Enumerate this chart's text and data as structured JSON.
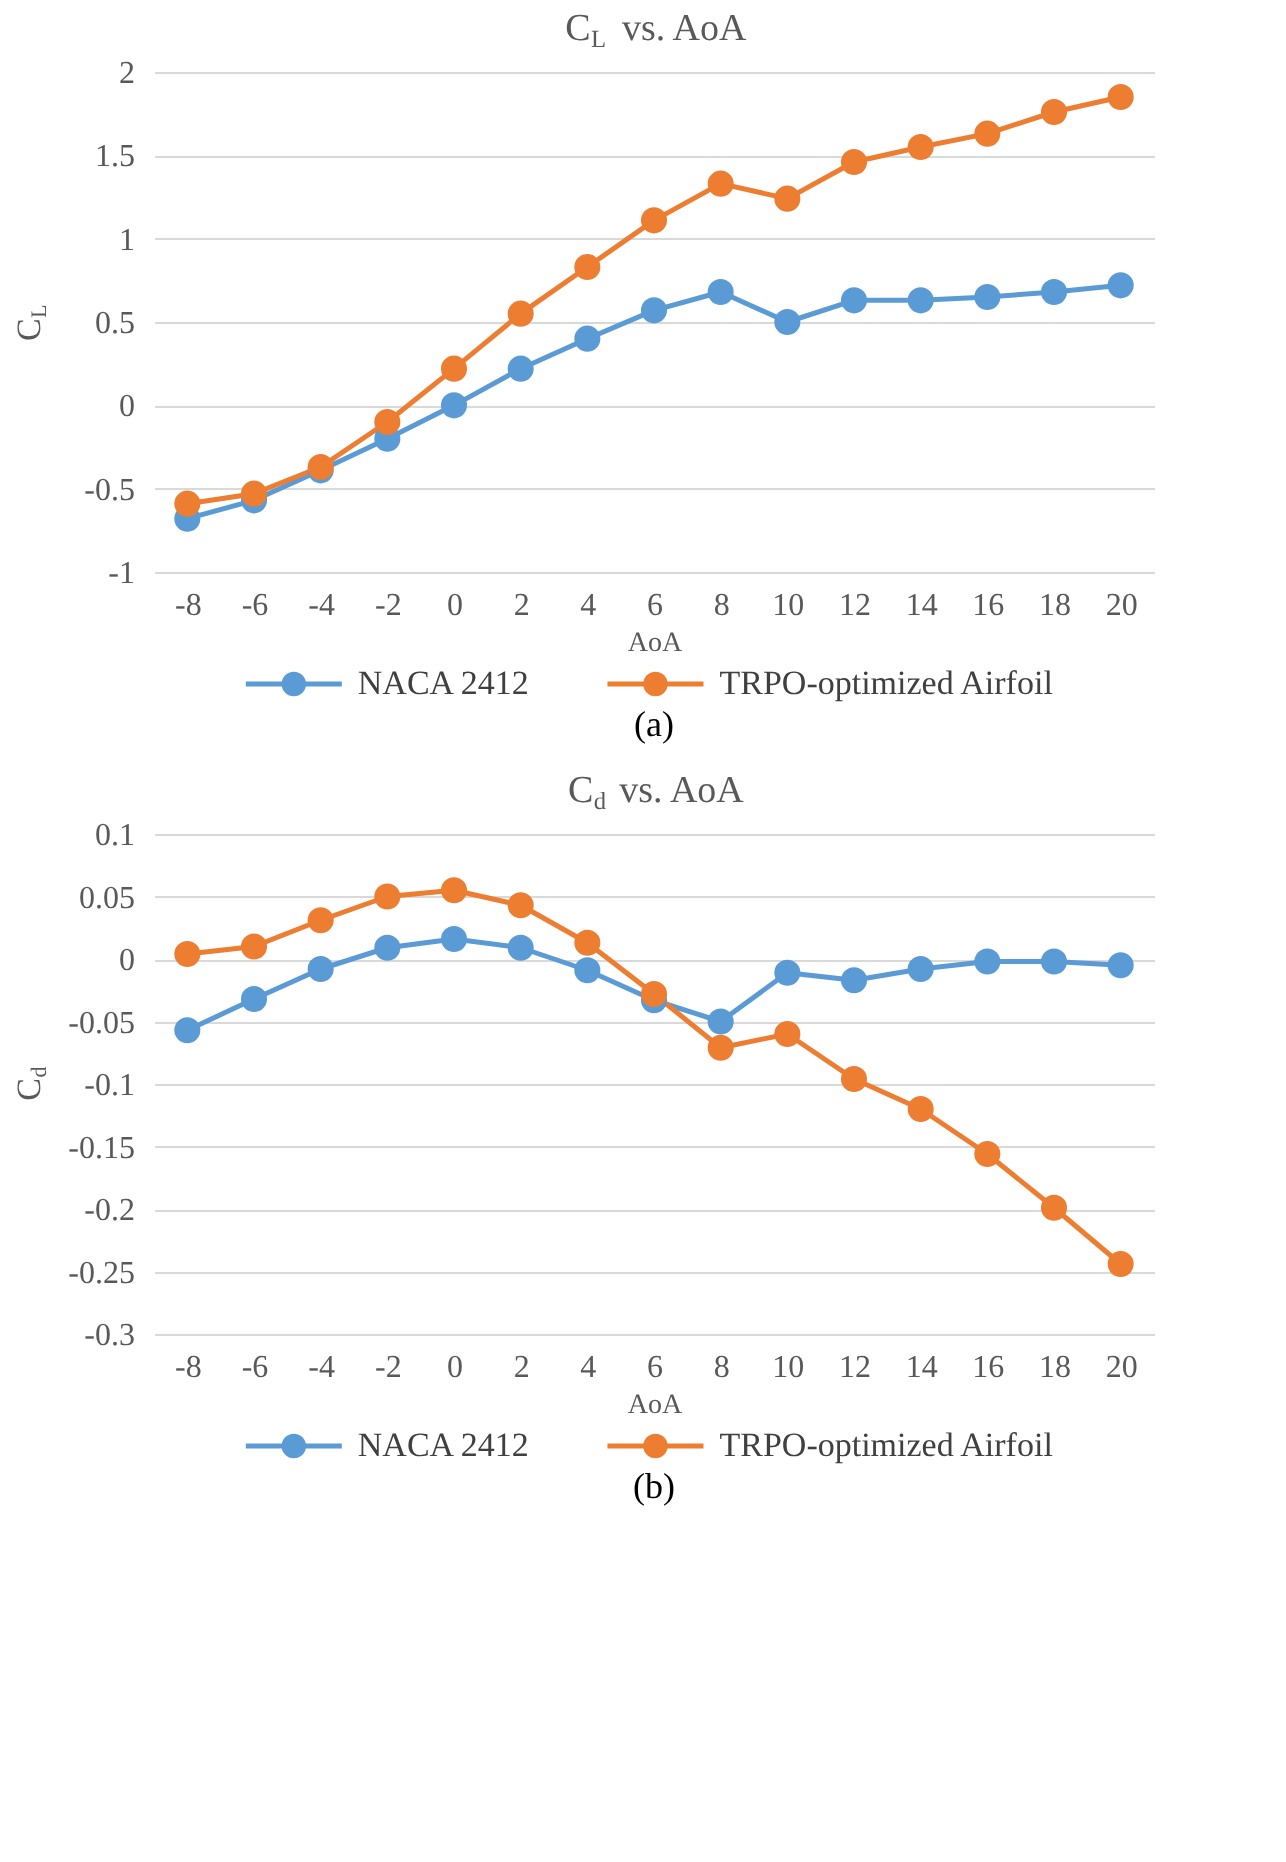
{
  "chart_data": [
    {
      "type": "line",
      "title": "C$_{L}$ vs. AoA",
      "xlabel": "AoA",
      "ylabel": "C$_{L}$",
      "categories": [
        "-8",
        "-6",
        "-4",
        "-2",
        "0",
        "2",
        "4",
        "6",
        "8",
        "10",
        "12",
        "14",
        "16",
        "18",
        "20"
      ],
      "series": [
        {
          "name": "NACA 2412",
          "color": "#5b9bd5",
          "values": [
            -0.68,
            -0.57,
            -0.39,
            -0.2,
            0.0,
            0.22,
            0.4,
            0.57,
            0.68,
            0.5,
            0.63,
            0.63,
            0.65,
            0.68,
            0.72
          ]
        },
        {
          "name": "TRPO-optimized Airfoil",
          "color": "#ed7d31",
          "values": [
            -0.59,
            -0.53,
            -0.37,
            -0.1,
            0.22,
            0.55,
            0.83,
            1.11,
            1.33,
            1.24,
            1.46,
            1.55,
            1.63,
            1.76,
            1.85
          ]
        }
      ],
      "ylim": [
        -1,
        2
      ],
      "yticks": [
        -1,
        -0.5,
        0,
        0.5,
        1,
        1.5,
        2
      ],
      "grid": "y",
      "legend": "bottom",
      "marker": "circle",
      "line_style": "solid",
      "annotations": [
        "(a)"
      ]
    },
    {
      "type": "line",
      "title": "C$_{d}$ vs. AoA",
      "xlabel": "AoA",
      "ylabel": "C$_{d}$",
      "categories": [
        "-8",
        "-6",
        "-4",
        "-2",
        "0",
        "2",
        "4",
        "6",
        "8",
        "10",
        "12",
        "14",
        "16",
        "18",
        "20"
      ],
      "series": [
        {
          "name": "NACA 2412",
          "color": "#5b9bd5",
          "values": [
            -0.057,
            -0.032,
            -0.008,
            0.009,
            0.016,
            0.009,
            -0.009,
            -0.033,
            -0.05,
            -0.011,
            -0.017,
            -0.008,
            -0.002,
            -0.002,
            -0.005
          ]
        },
        {
          "name": "TRPO-optimized Airfoil",
          "color": "#ed7d31",
          "values": [
            0.004,
            0.01,
            0.031,
            0.05,
            0.055,
            0.043,
            0.013,
            -0.028,
            -0.071,
            -0.06,
            -0.096,
            -0.12,
            -0.156,
            -0.199,
            -0.244
          ]
        }
      ],
      "ylim": [
        -0.3,
        0.1
      ],
      "yticks": [
        -0.3,
        -0.25,
        -0.2,
        -0.15,
        -0.1,
        -0.05,
        0,
        0.05,
        0.1
      ],
      "grid": "y",
      "legend": "bottom",
      "marker": "circle",
      "line_style": "solid",
      "annotations": [
        "(b)"
      ]
    }
  ]
}
